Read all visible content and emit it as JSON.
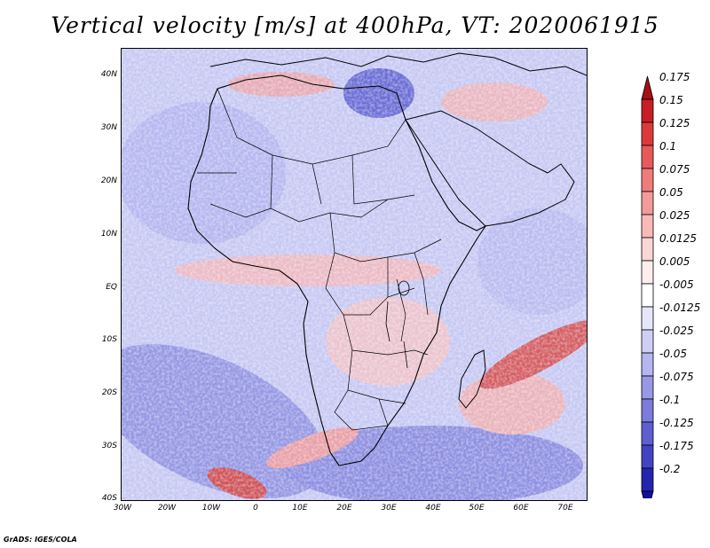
{
  "title": "Vertical velocity [m/s] at 400hPa, VT: 2020061915",
  "credit": "GrADS: IGES/COLA",
  "map": {
    "lat_labels": [
      "40N",
      "30N",
      "20N",
      "10N",
      "EQ",
      "10S",
      "20S",
      "30S",
      "40S"
    ],
    "lon_labels": [
      "30W",
      "20W",
      "10W",
      "0",
      "10E",
      "20E",
      "30E",
      "40E",
      "50E",
      "60E",
      "70E"
    ],
    "lon_range": [
      -30,
      75
    ],
    "lat_range": [
      -40,
      45
    ]
  },
  "colorbar": {
    "labels": [
      "0.175",
      "0.15",
      "0.125",
      "0.1",
      "0.075",
      "0.05",
      "0.025",
      "0.0125",
      "0.005",
      "-0.005",
      "-0.0125",
      "-0.025",
      "-0.05",
      "-0.075",
      "-0.1",
      "-0.125",
      "-0.175",
      "-0.2"
    ],
    "colors": [
      "#a50f15",
      "#c81d25",
      "#dc3a3a",
      "#e85a5a",
      "#ef7b7b",
      "#f49a9a",
      "#f8b9b9",
      "#fbd6d6",
      "#fdeeee",
      "#ffffff",
      "#e6e6fb",
      "#cfcff5",
      "#b5b5ef",
      "#9898e6",
      "#7c7cdd",
      "#5f5fd2",
      "#4343c4",
      "#2424b0",
      "#11119a"
    ]
  }
}
